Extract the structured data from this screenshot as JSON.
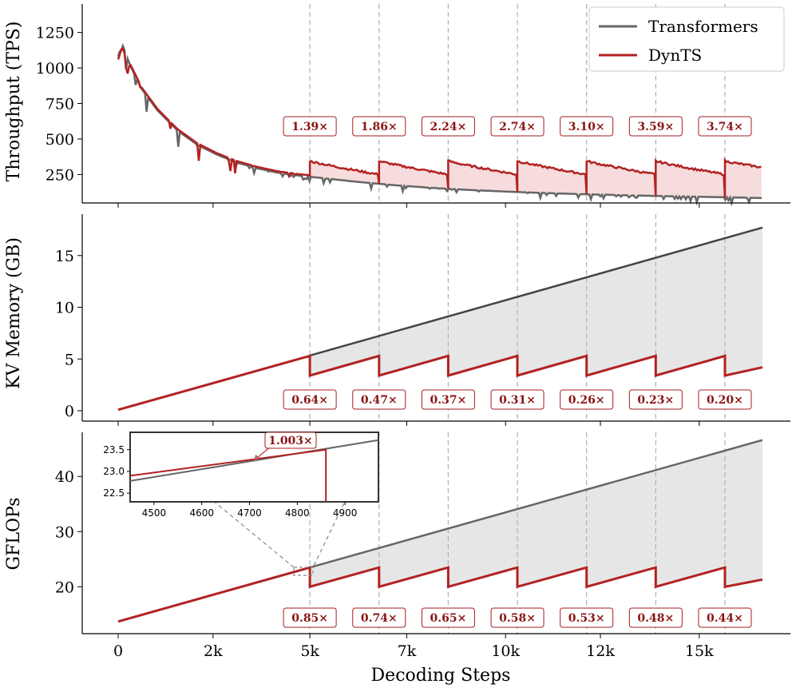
{
  "colors": {
    "transformers": "#666666",
    "dynts": "#b22222",
    "dynts_fill": "#f6dcdc",
    "memory_fill": "#e6e6e6",
    "kv_transformers": "#444444",
    "annotation_text": "#8b1414"
  },
  "legend": {
    "transformers": "Transformers",
    "dynts": "DynTS",
    "position": "top-right"
  },
  "chart_data": [
    {
      "type": "line",
      "panel": "throughput",
      "ylabel": "Throughput (TPS)",
      "ylim": [
        50,
        1450
      ],
      "yticks": [
        "250",
        "500",
        "750",
        "1000",
        "1250"
      ],
      "yticks_values": [
        250,
        500,
        750,
        1000,
        1250
      ],
      "x_range": [
        0,
        16300
      ],
      "reset_steps": [
        4850,
        6600,
        8350,
        10100,
        11850,
        13600,
        15350
      ],
      "series": [
        {
          "name": "Transformers",
          "x": [
            0,
            100,
            300,
            600,
            1000,
            1500,
            2000,
            2500,
            3000,
            3500,
            4000,
            4500,
            5000,
            6000,
            7000,
            8000,
            9000,
            10000,
            11000,
            12000,
            13000,
            14000,
            15000,
            16300
          ],
          "y": [
            1080,
            1170,
            1020,
            850,
            700,
            560,
            460,
            390,
            335,
            295,
            265,
            245,
            230,
            200,
            175,
            155,
            140,
            128,
            118,
            110,
            103,
            97,
            92,
            85
          ]
        },
        {
          "name": "DynTS",
          "segments_start": [
            240,
            345,
            345,
            345,
            345,
            345,
            345,
            345
          ],
          "segments_end": [
            240,
            250,
            250,
            250,
            250,
            250,
            250,
            300
          ]
        }
      ],
      "annotations": [
        "1.39×",
        "1.86×",
        "2.24×",
        "2.74×",
        "3.10×",
        "3.59×",
        "3.74×"
      ]
    },
    {
      "type": "line",
      "panel": "kv_memory",
      "ylabel": "KV Memory (GB)",
      "ylim": [
        -1,
        19
      ],
      "yticks": [
        "0",
        "5",
        "10",
        "15"
      ],
      "yticks_values": [
        0,
        5,
        10,
        15
      ],
      "series": [
        {
          "name": "Transformers",
          "x": [
            0,
            16300
          ],
          "y": [
            0.1,
            17.7
          ]
        },
        {
          "name": "DynTS",
          "peak": 5.3,
          "reset_to": 3.4,
          "end": 4.2
        }
      ],
      "annotations": [
        "0.64×",
        "0.47×",
        "0.37×",
        "0.31×",
        "0.26×",
        "0.23×",
        "0.20×"
      ]
    },
    {
      "type": "line",
      "panel": "gflops",
      "ylabel": "GFLOPs",
      "xlabel": "Decoding Steps",
      "ylim": [
        11.5,
        48
      ],
      "yticks": [
        "20",
        "30",
        "40"
      ],
      "yticks_values": [
        20,
        30,
        40
      ],
      "xticks": [
        "0",
        "2k",
        "5k",
        "7k",
        "10k",
        "12k",
        "15k"
      ],
      "xticks_values": [
        0,
        2400,
        4850,
        7300,
        9800,
        12200,
        14700
      ],
      "series": [
        {
          "name": "Transformers",
          "x": [
            0,
            16300
          ],
          "y": [
            13.7,
            46.6
          ]
        },
        {
          "name": "DynTS",
          "peak": 23.5,
          "reset_to": 20.0,
          "end": 21.3
        }
      ],
      "annotations": [
        "0.85×",
        "0.74×",
        "0.65×",
        "0.58×",
        "0.53×",
        "0.48×",
        "0.44×"
      ],
      "inset": {
        "xlim": [
          4450,
          4970
        ],
        "ylim": [
          22.3,
          23.9
        ],
        "xticks": [
          "4500",
          "4600",
          "4700",
          "4800",
          "4900"
        ],
        "xticks_values": [
          4500,
          4600,
          4700,
          4800,
          4900
        ],
        "yticks": [
          "22.5",
          "23.0",
          "23.5"
        ],
        "yticks_values": [
          22.5,
          23.0,
          23.5
        ],
        "transformers": {
          "x": [
            4450,
            4970
          ],
          "y": [
            22.78,
            23.72
          ]
        },
        "dynts": {
          "x": [
            4450,
            4860
          ],
          "y": [
            22.9,
            23.5
          ],
          "drop_x": 4860
        },
        "annotation": "1.003×"
      }
    }
  ]
}
